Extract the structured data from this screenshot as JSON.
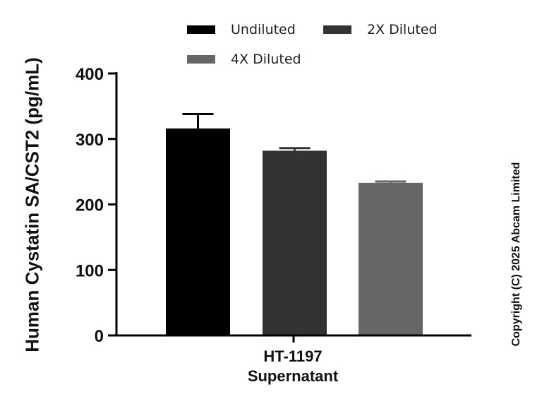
{
  "chart_data": {
    "type": "bar",
    "categories": [
      "HT-1197 Supernatant"
    ],
    "category_label_lines": [
      "HT-1197",
      "Supernatant"
    ],
    "ylabel": "Human Cystatin SA/CST2 (pg/mL)",
    "ylim": [
      0,
      400
    ],
    "yticks": [
      "0",
      "100",
      "200",
      "300",
      "400"
    ],
    "legend_position": "top",
    "series": [
      {
        "name": "Undiluted",
        "values": [
          316
        ],
        "error": [
          22
        ],
        "color": "#000000"
      },
      {
        "name": "2X Diluted",
        "values": [
          282
        ],
        "error": [
          4
        ],
        "color": "#333333"
      },
      {
        "name": "4X Diluted",
        "values": [
          233
        ],
        "error": [
          2
        ],
        "color": "#666666"
      }
    ]
  },
  "copyright": "Copyright (C) 2025 Abcam Limited"
}
